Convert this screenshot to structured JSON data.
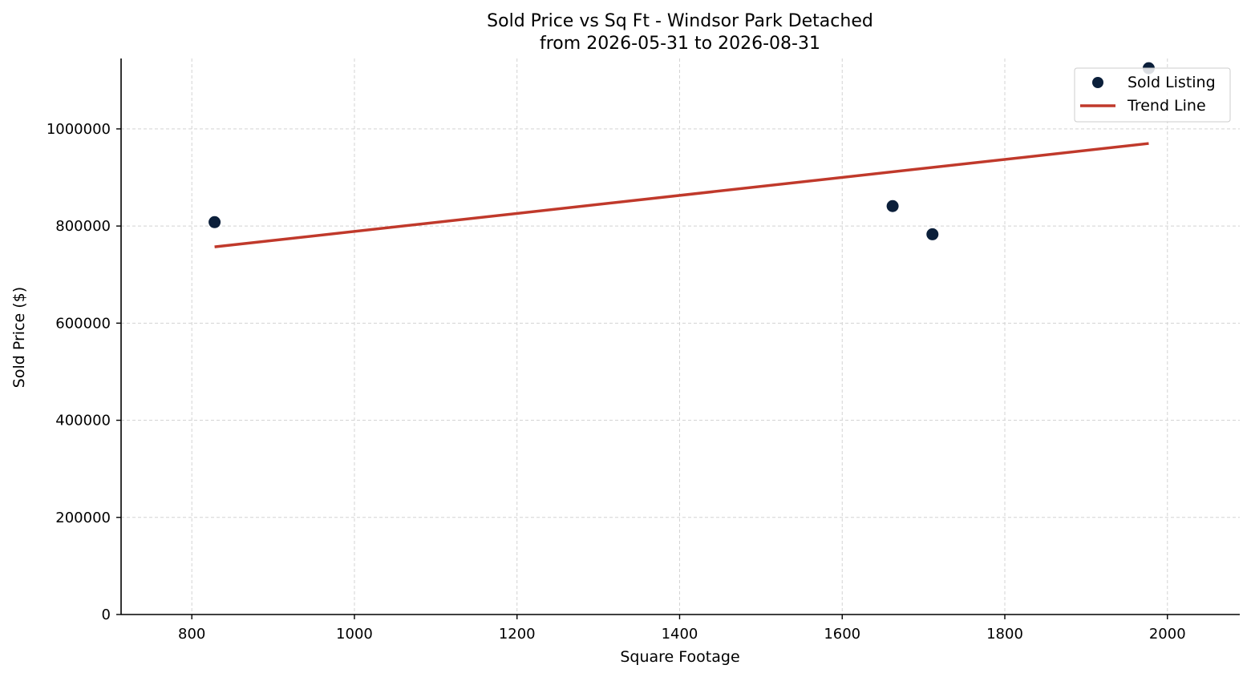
{
  "chart_data": {
    "type": "scatter",
    "title": "Sold Price vs Sq Ft - Windsor Park Detached",
    "subtitle": "from 2026-05-31 to 2026-08-31",
    "xlabel": "Square Footage",
    "ylabel": "Sold Price ($)",
    "xlim": [
      713,
      2089
    ],
    "ylim": [
      0,
      1145000
    ],
    "xticks": [
      800,
      1000,
      1200,
      1400,
      1600,
      1800,
      2000
    ],
    "yticks": [
      0,
      200000,
      400000,
      600000,
      800000,
      1000000
    ],
    "grid": true,
    "legend_position": "top-right",
    "series": [
      {
        "name": "Sold Listing",
        "kind": "scatter",
        "color": "#0b1f3a",
        "points": [
          {
            "x": 828,
            "y": 808000
          },
          {
            "x": 1662,
            "y": 841000
          },
          {
            "x": 1711,
            "y": 783000
          },
          {
            "x": 1977,
            "y": 1125000
          }
        ]
      },
      {
        "name": "Trend Line",
        "kind": "line",
        "color": "#c0392b",
        "points": [
          {
            "x": 828,
            "y": 757000
          },
          {
            "x": 1977,
            "y": 970000
          }
        ]
      }
    ]
  }
}
